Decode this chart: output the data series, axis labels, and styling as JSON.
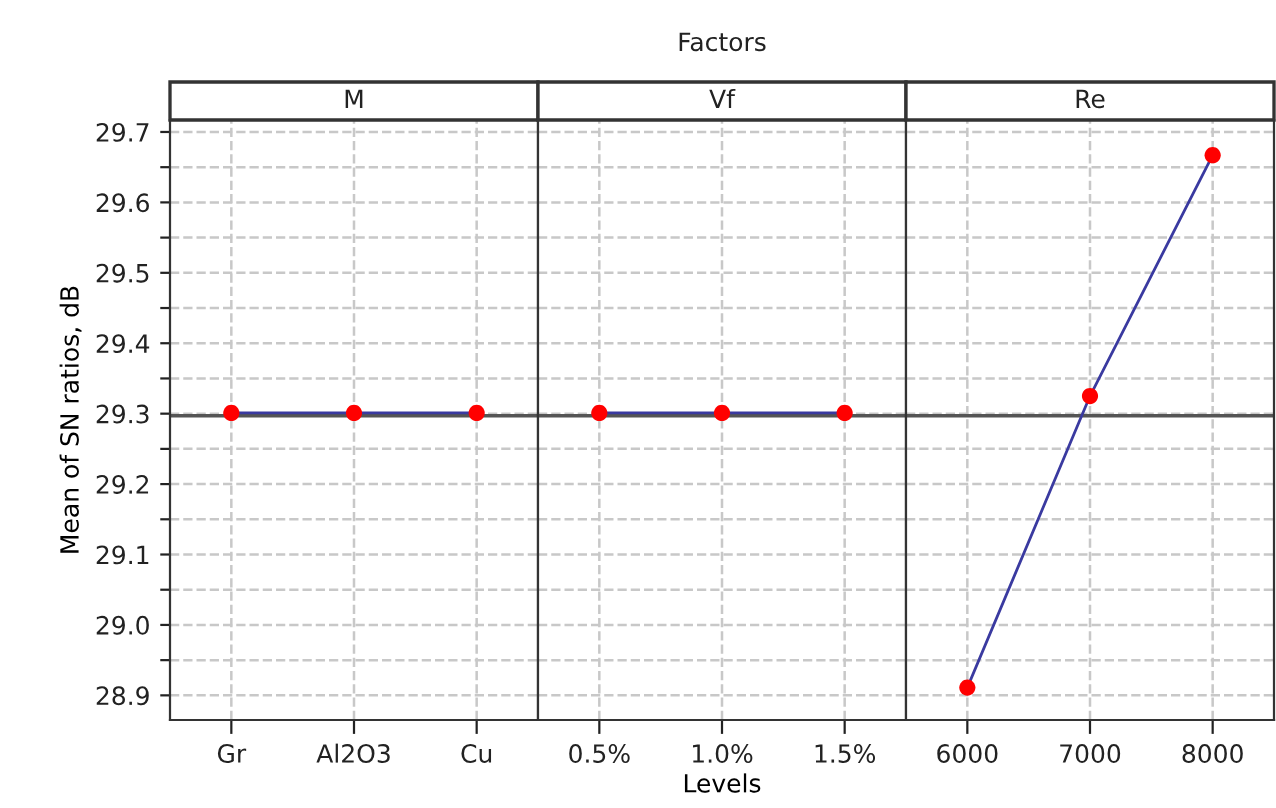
{
  "chart_data": [
    {
      "type": "line",
      "title": "M",
      "categories": [
        "Gr",
        "Al2O3",
        "Cu"
      ],
      "ylabel": "Mean of SN ratios, dB",
      "series": [
        {
          "color": "#3a3aa0",
          "values": [
            29.301,
            29.301,
            29.301
          ]
        },
        {
          "type": "scatter",
          "color": "#ff0000",
          "values": [
            29.301,
            29.301,
            29.301
          ]
        }
      ],
      "ylim": [
        28.865,
        29.717
      ],
      "yticks": [
        28.9,
        {
          "value": 28.95,
          "label": null
        },
        {
          "value": 29.0,
          "label": "29.0"
        },
        {
          "value": 29.05,
          "label": null
        },
        29.1,
        {
          "value": 29.15,
          "label": null
        },
        29.2,
        {
          "value": 29.25,
          "label": null
        },
        29.3,
        {
          "value": 29.35,
          "label": null
        },
        29.4,
        {
          "value": 29.45,
          "label": null
        },
        29.5,
        {
          "value": 29.55,
          "label": null
        },
        29.6,
        {
          "value": 29.65,
          "label": null
        },
        29.7
      ],
      "ref_lines": [
        {
          "axis": "y",
          "value": 29.297,
          "color": "#555555"
        }
      ],
      "grid": true
    },
    {
      "type": "line",
      "title": "Vf",
      "categories": [
        "0.5%",
        "1.0%",
        "1.5%"
      ],
      "xlabel": "Levels",
      "annotations": [
        "Factors"
      ],
      "series": [
        {
          "color": "#3a3aa0",
          "values": [
            29.301,
            29.301,
            29.301
          ]
        },
        {
          "type": "scatter",
          "color": "#ff0000",
          "values": [
            29.301,
            29.301,
            29.301
          ]
        }
      ],
      "ylim": [
        28.865,
        29.717
      ],
      "tick_labels": "x",
      "ref_lines": [
        {
          "axis": "y",
          "value": 29.297,
          "color": "#555555"
        }
      ],
      "grid": true
    },
    {
      "type": "line",
      "title": "Re",
      "categories": [
        "6000",
        "7000",
        "8000"
      ],
      "series": [
        {
          "color": "#3a3aa0",
          "values": [
            28.911,
            29.325,
            29.667
          ]
        },
        {
          "type": "scatter",
          "color": "#ff0000",
          "values": [
            28.911,
            29.325,
            29.667
          ]
        }
      ],
      "ylim": [
        28.865,
        29.717
      ],
      "tick_labels": "x",
      "ref_lines": [
        {
          "axis": "y",
          "value": 29.297,
          "color": "#555555"
        }
      ],
      "grid": true
    }
  ]
}
